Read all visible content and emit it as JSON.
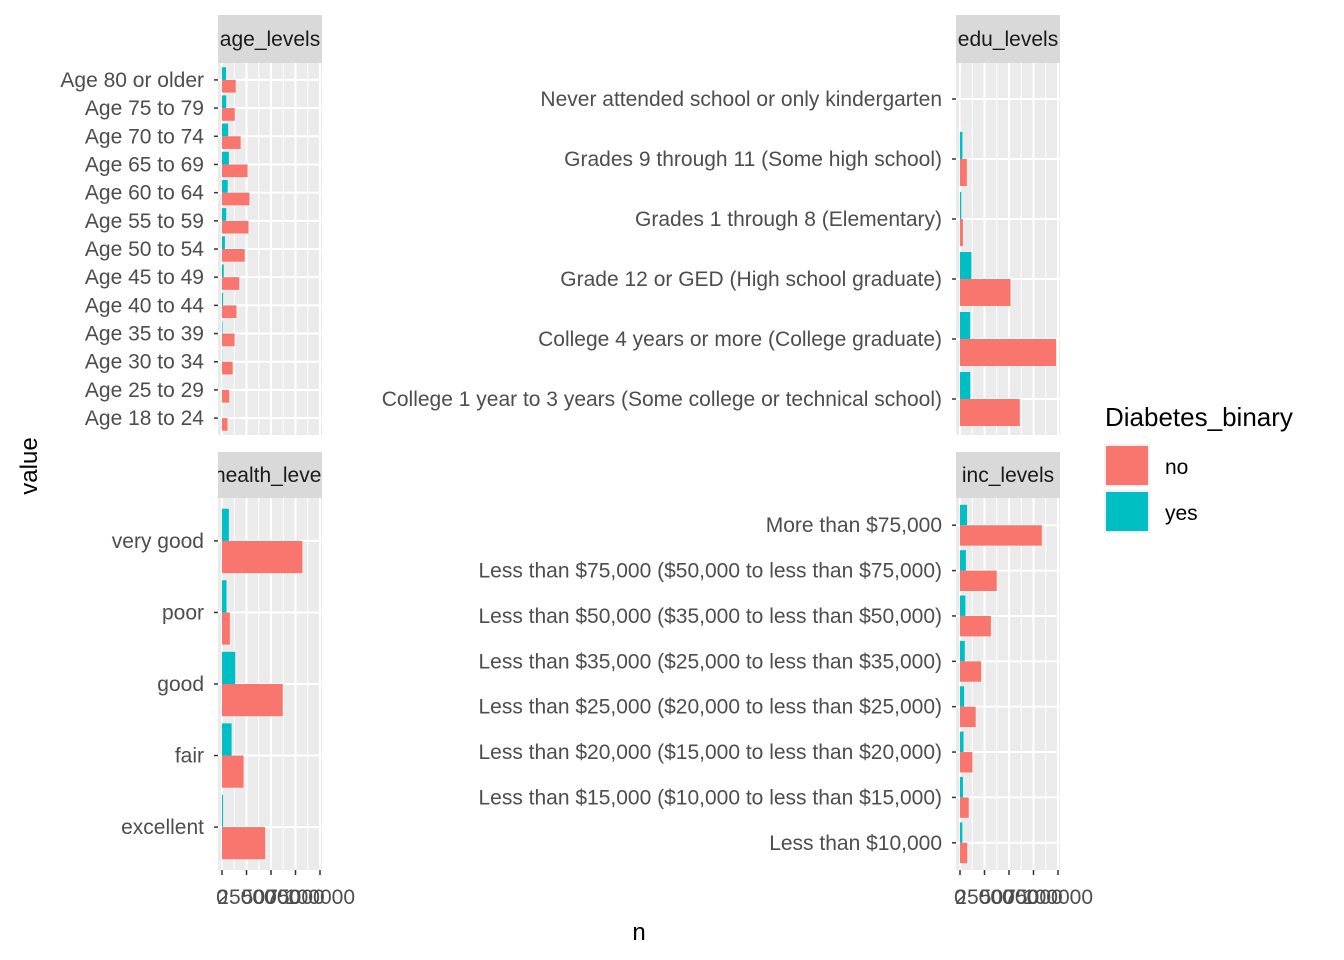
{
  "chart_data": {
    "type": "bar",
    "orientation": "horizontal",
    "xlabel": "n",
    "ylabel": "value",
    "x_tick_labels": [
      "0",
      "25000",
      "50000",
      "75000",
      "100000"
    ],
    "legend": {
      "title": "Diabetes_binary",
      "position": "right",
      "entries": [
        {
          "label": "no",
          "color": "#F8766D"
        },
        {
          "label": "yes",
          "color": "#00BFC4"
        }
      ]
    },
    "facets": [
      {
        "strip": "age_levels",
        "xlim": [
          0,
          100000
        ],
        "categories": [
          "Age 18 to 24",
          "Age 25 to 29",
          "Age 30 to 34",
          "Age 35 to 39",
          "Age 40 to 44",
          "Age 45 to 49",
          "Age 50 to 54",
          "Age 55 to 59",
          "Age 60 to 64",
          "Age 65 to 69",
          "Age 70 to 74",
          "Age 75 to 79",
          "Age 80 or older"
        ],
        "series": [
          {
            "name": "no",
            "values": [
              5600,
              7400,
              10900,
              12800,
              14800,
              17600,
              23200,
              27000,
              28000,
              26000,
              19000,
              13000,
              14000
            ]
          },
          {
            "name": "yes",
            "values": [
              80,
              140,
              300,
              600,
              1100,
              1800,
              3000,
              4300,
              5800,
              7000,
              6300,
              4300,
              4100
            ]
          }
        ]
      },
      {
        "strip": "edu_levels",
        "xlim": [
          0,
          100000
        ],
        "categories": [
          "College 1 year to 3 years (Some college or technical school)",
          "College 4 years or more (College graduate)",
          "Grade 12 or GED (High school graduate)",
          "Grades 1 through 8 (Elementary)",
          "Grades 9 through 11 (Some high school)",
          "Never attended school or only kindergarten"
        ],
        "series": [
          {
            "name": "no",
            "values": [
              61000,
              98000,
              51500,
              3000,
              7000,
              100
            ]
          },
          {
            "name": "yes",
            "values": [
              10500,
              10400,
              11600,
              1300,
              2500,
              50
            ]
          }
        ]
      },
      {
        "strip": "health_level",
        "xlim": [
          0,
          100000
        ],
        "categories": [
          "excellent",
          "fair",
          "good",
          "poor",
          "very good"
        ],
        "series": [
          {
            "name": "no",
            "values": [
              44000,
              22000,
              62000,
              8000,
              82000
            ]
          },
          {
            "name": "yes",
            "values": [
              1100,
              9800,
              13500,
              4600,
              7000
            ]
          }
        ]
      },
      {
        "strip": "inc_levels",
        "xlim": [
          0,
          100000
        ],
        "categories": [
          "Less than $10,000",
          "Less than $15,000 ($10,000 to less than $15,000)",
          "Less than $20,000 ($15,000 to less than $20,000)",
          "Less than $25,000 ($20,000 to less than $25,000)",
          "Less than $35,000 ($25,000 to less than $35,000)",
          "Less than $50,000 ($35,000 to less than $50,000)",
          "Less than $75,000 ($50,000 to less than $75,000)",
          "More than $75,000"
        ],
        "series": [
          {
            "name": "no",
            "values": [
              7400,
              8900,
              12600,
              16000,
              21500,
              31500,
              37500,
              83500
            ]
          },
          {
            "name": "yes",
            "values": [
              2400,
              3000,
              3600,
              4200,
              4900,
              5500,
              6000,
              7200
            ]
          }
        ]
      }
    ]
  }
}
